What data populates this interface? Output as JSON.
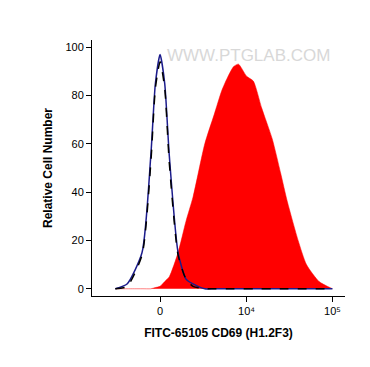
{
  "chart_data": {
    "type": "area",
    "x_label": "FITC-65105 CD69 (H1.2F3)",
    "y_label": "Relative Cell Number",
    "annotations": [
      {
        "text": "WWW.PTGLAB.COM"
      }
    ],
    "x": [
      -3000,
      -2000,
      -1000,
      -500,
      -250,
      0,
      250,
      500,
      1000,
      1500,
      2000,
      3000,
      4000,
      5000,
      6000,
      7000,
      8000,
      10000,
      12000,
      15000,
      20000,
      25000,
      30000,
      40000,
      50000,
      70000,
      100000
    ],
    "series": [
      {
        "type": "area",
        "color": "#ff0000",
        "line_style": "solid",
        "values": [
          0,
          0,
          0,
          0,
          0.5,
          1,
          3,
          5,
          15,
          28,
          38,
          60,
          72,
          82,
          88,
          92,
          93,
          88,
          86,
          75,
          62,
          48,
          36,
          20,
          10,
          3,
          0
        ]
      },
      {
        "type": "line",
        "color": "#1c1c8c",
        "line_style": "solid",
        "values": [
          0,
          2,
          15,
          55,
          85,
          97,
          85,
          55,
          15,
          4,
          2,
          0,
          0,
          0,
          0,
          0,
          0,
          0,
          0,
          0,
          0,
          0,
          0,
          0,
          0,
          0,
          0
        ]
      },
      {
        "type": "line",
        "color": "#000000",
        "line_style": "dash",
        "values": [
          0,
          1,
          14,
          52,
          83,
          94,
          83,
          52,
          14,
          4,
          1,
          0,
          0,
          0,
          0,
          0,
          0,
          0,
          0,
          0,
          0,
          0,
          0,
          0,
          0,
          0,
          0
        ]
      }
    ],
    "xlim": [
      -6000,
      140000
    ],
    "xticks": [
      0,
      {
        "value": 10000,
        "label": "10⁴"
      },
      {
        "value": 100000,
        "label": "10⁵"
      }
    ],
    "ylim": [
      -3,
      103
    ],
    "yticks": [
      0,
      20,
      40,
      60,
      80,
      100
    ],
    "grid": false
  }
}
